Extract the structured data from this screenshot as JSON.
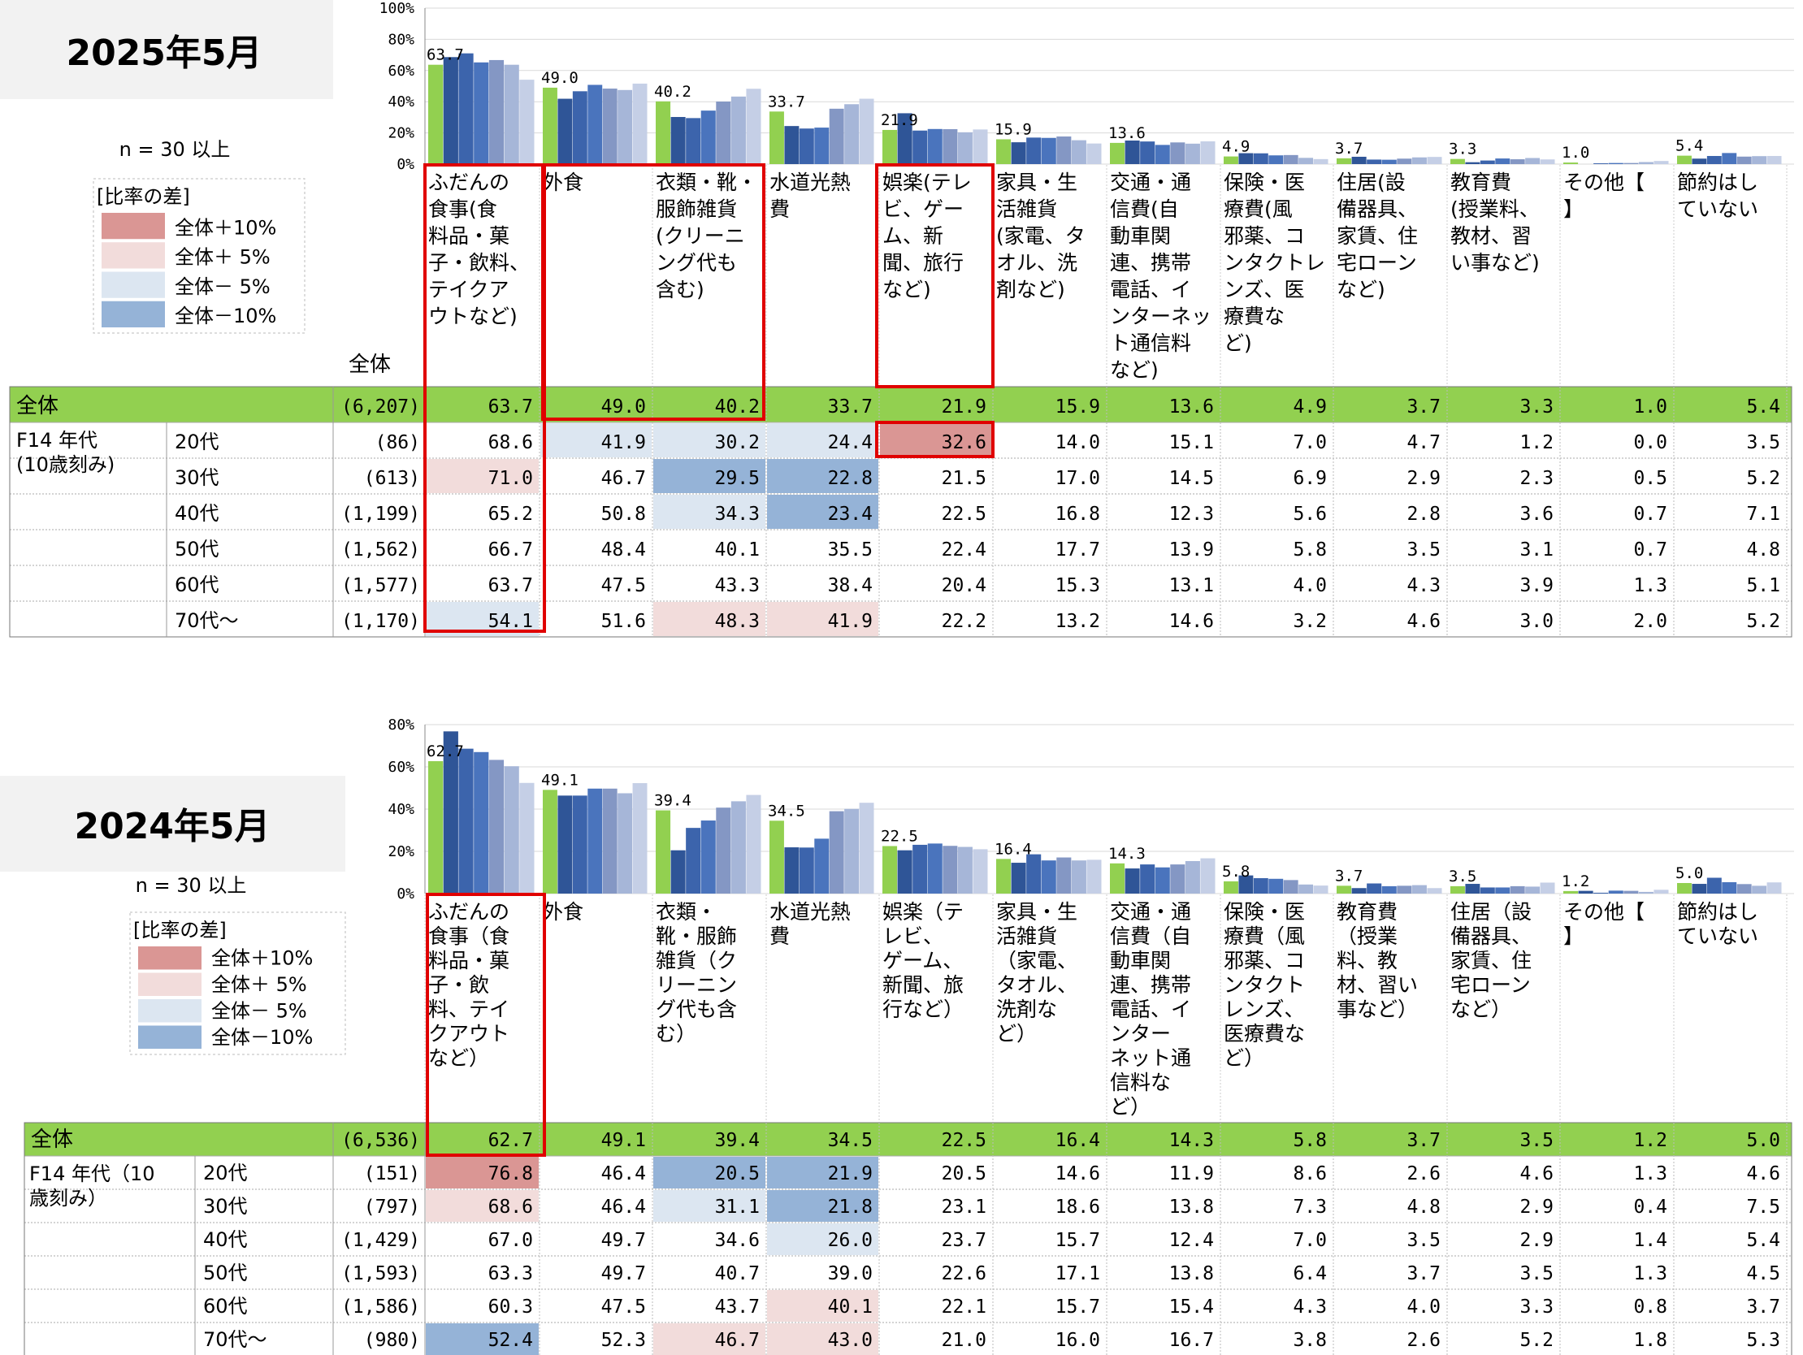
{
  "colors": {
    "header_green": "#92d050",
    "bar_total": "#92d050",
    "bar_ages": [
      "#2f5597",
      "#3c64ac",
      "#4a74bd",
      "#8497c4",
      "#a6b6d8",
      "#c5cfe6"
    ],
    "diff_plus10": "#da9694",
    "diff_plus5": "#f2dcdb",
    "diff_minus5": "#dce6f1",
    "diff_minus10": "#95b3d7",
    "highlight_box": "#e00000"
  },
  "legend": {
    "n_label": "n = 30 以上",
    "title": "[比率の差]",
    "items": [
      "全体＋10%",
      "全体＋ 5%",
      "全体－ 5%",
      "全体－10%"
    ]
  },
  "chart_data": [
    {
      "type": "bar",
      "period_label": "2025年5月",
      "total_col_header": "全体",
      "y_ticks": [
        "100%",
        "80%",
        "60%",
        "40%",
        "20%",
        "0%"
      ],
      "ylim": [
        0,
        100
      ],
      "categories": [
        "ふだんの食事(食料品・菓子・飲料、テイクアウトなど)",
        "外食",
        "衣類・靴・服飾雑貨(クリーニング代も含む)",
        "水道光熱費",
        "娯楽(テレビ、ゲーム、新聞、旅行など)",
        "家具・生活雑貨(家電、タオル、洗剤など)",
        "交通・通信費(自動車関連、携帯電話、インターネット通信料など)",
        "保険・医療費(風邪薬、コンタクトレンズ、医療費など)",
        "住居(設備器具、家賃、住宅ローンなど)",
        "教育費(授業料、教材、習い事など)",
        "その他【】",
        "節約はしていない"
      ],
      "header_labels": [
        "ふだんの\n食事(食\n料品・菓\n子・飲料、\nテイクア\nウトなど)",
        "外食",
        "衣類・靴・\n服飾雑貨\n(クリーニ\nング代も\n含む)",
        "水道光熱\n費",
        "娯楽(テレ\nビ、ゲー\nム、新\n聞、旅行\nなど)",
        "家具・生\n活雑貨\n(家電、タ\nオル、洗\n剤など)",
        "交通・通\n信費(自\n動車関\n連、携帯\n電話、イ\nンターネッ\nト通信料\nなど)",
        "保険・医\n療費(風\n邪薬、コ\nンタクトレ\nンズ、医\n療費な\nど)",
        "住居(設\n備器具、\n家賃、住\n宅ローン\nなど)",
        "教育費\n(授業料、\n教材、習\nい事など)",
        "その他【\n】",
        "節約はし\nていない"
      ],
      "bar_labels": [
        "63.7",
        "49.0",
        "40.2",
        "33.7",
        "21.9",
        "15.9",
        "13.6",
        "4.9",
        "3.7",
        "3.3",
        "1.0",
        "5.4"
      ],
      "row_group_label": "F14 年代\n(10歳刻み)",
      "rows": [
        {
          "label": "全体",
          "n": "(6,207)",
          "values": [
            "63.7",
            "49.0",
            "40.2",
            "33.7",
            "21.9",
            "15.9",
            "13.6",
            "4.9",
            "3.7",
            "3.3",
            "1.0",
            "5.4"
          ],
          "diff": []
        },
        {
          "label": "20代",
          "n": "(86)",
          "values": [
            "68.6",
            "41.9",
            "30.2",
            "24.4",
            "32.6",
            "14.0",
            "15.1",
            "7.0",
            "4.7",
            "1.2",
            "0.0",
            "3.5"
          ],
          "diff": [
            "",
            "m5",
            "m5",
            "m5",
            "p10",
            "",
            "",
            "",
            "",
            "",
            "",
            ""
          ]
        },
        {
          "label": "30代",
          "n": "(613)",
          "values": [
            "71.0",
            "46.7",
            "29.5",
            "22.8",
            "21.5",
            "17.0",
            "14.5",
            "6.9",
            "2.9",
            "2.3",
            "0.5",
            "5.2"
          ],
          "diff": [
            "p5",
            "",
            "m10",
            "m10",
            "",
            "",
            "",
            "",
            "",
            "",
            "",
            ""
          ]
        },
        {
          "label": "40代",
          "n": "(1,199)",
          "values": [
            "65.2",
            "50.8",
            "34.3",
            "23.4",
            "22.5",
            "16.8",
            "12.3",
            "5.6",
            "2.8",
            "3.6",
            "0.7",
            "7.1"
          ],
          "diff": [
            "",
            "",
            "m5",
            "m10",
            "",
            "",
            "",
            "",
            "",
            "",
            "",
            ""
          ]
        },
        {
          "label": "50代",
          "n": "(1,562)",
          "values": [
            "66.7",
            "48.4",
            "40.1",
            "35.5",
            "22.4",
            "17.7",
            "13.9",
            "5.8",
            "3.5",
            "3.1",
            "0.7",
            "4.8"
          ],
          "diff": []
        },
        {
          "label": "60代",
          "n": "(1,577)",
          "values": [
            "63.7",
            "47.5",
            "43.3",
            "38.4",
            "20.4",
            "15.3",
            "13.1",
            "4.0",
            "4.3",
            "3.9",
            "1.3",
            "5.1"
          ],
          "diff": []
        },
        {
          "label": "70代～",
          "n": "(1,170)",
          "values": [
            "54.1",
            "51.6",
            "48.3",
            "41.9",
            "22.2",
            "13.2",
            "14.6",
            "3.2",
            "4.6",
            "3.0",
            "2.0",
            "5.2"
          ],
          "diff": [
            "m5",
            "",
            "p5",
            "p5",
            "",
            "",
            "",
            "",
            "",
            "",
            "",
            ""
          ]
        }
      ]
    },
    {
      "type": "bar",
      "period_label": "2024年5月",
      "total_col_header": "",
      "y_ticks": [
        "80%",
        "60%",
        "40%",
        "20%",
        "0%"
      ],
      "ylim": [
        0,
        80
      ],
      "categories": [
        "ふだんの食事(食料品・菓子・飲料、テイクアウトなど)",
        "外食",
        "衣類・靴・服飾雑貨(クリーニング代も含む)",
        "水道光熱費",
        "娯楽(テレビ、ゲーム、新聞、旅行など)",
        "家具・生活雑貨(家電、タオル、洗剤など)",
        "交通・通信費(自動車関連、携帯電話、インターネット通信料など)",
        "保険・医療費(風邪薬、コンタクトレンズ、医療費など)",
        "教育費(授業料、教材、習い事など)",
        "住居(設備器具、家賃、住宅ローンなど)",
        "その他【】",
        "節約はしていない"
      ],
      "header_labels": [
        "ふだんの\n食事（食\n料品・菓\n子・飲\n料、テイ\nクアウト\nなど）",
        "外食",
        "衣類・\n靴・服飾\n雑貨（ク\nリーニン\nグ代も含\nむ）",
        "水道光熱\n費",
        "娯楽（テ\nレビ、\nゲーム、\n新聞、旅\n行など）",
        "家具・生\n活雑貨\n（家電、\nタオル、\n洗剤な\nど）",
        "交通・通\n信費（自\n動車関\n連、携帯\n電話、イ\nンター\nネット通\n信料な\nど）",
        "保険・医\n療費（風\n邪薬、コ\nンタクト\nレンズ、\n医療費な\nど）",
        "教育費\n（授業\n料、教\n材、習い\n事など）",
        "住居（設\n備器具、\n家賃、住\n宅ローン\nなど）",
        "その他【\n】",
        "節約はし\nていない"
      ],
      "bar_labels": [
        "62.7",
        "49.1",
        "39.4",
        "34.5",
        "22.5",
        "16.4",
        "14.3",
        "5.8",
        "3.7",
        "3.5",
        "1.2",
        "5.0"
      ],
      "row_group_label": "F14 年代（10\n歳刻み）",
      "rows": [
        {
          "label": "全体",
          "n": "(6,536)",
          "values": [
            "62.7",
            "49.1",
            "39.4",
            "34.5",
            "22.5",
            "16.4",
            "14.3",
            "5.8",
            "3.7",
            "3.5",
            "1.2",
            "5.0"
          ],
          "diff": []
        },
        {
          "label": "20代",
          "n": "(151)",
          "values": [
            "76.8",
            "46.4",
            "20.5",
            "21.9",
            "20.5",
            "14.6",
            "11.9",
            "8.6",
            "2.6",
            "4.6",
            "1.3",
            "4.6"
          ],
          "diff": [
            "p10",
            "",
            "m10",
            "m10",
            "",
            "",
            "",
            "",
            "",
            "",
            "",
            ""
          ]
        },
        {
          "label": "30代",
          "n": "(797)",
          "values": [
            "68.6",
            "46.4",
            "31.1",
            "21.8",
            "23.1",
            "18.6",
            "13.8",
            "7.3",
            "4.8",
            "2.9",
            "0.4",
            "7.5"
          ],
          "diff": [
            "p5",
            "",
            "m5",
            "m10",
            "",
            "",
            "",
            "",
            "",
            "",
            "",
            ""
          ]
        },
        {
          "label": "40代",
          "n": "(1,429)",
          "values": [
            "67.0",
            "49.7",
            "34.6",
            "26.0",
            "23.7",
            "15.7",
            "12.4",
            "7.0",
            "3.5",
            "2.9",
            "1.4",
            "5.4"
          ],
          "diff": [
            "",
            "",
            "",
            "m5",
            "",
            "",
            "",
            "",
            "",
            "",
            "",
            ""
          ]
        },
        {
          "label": "50代",
          "n": "(1,593)",
          "values": [
            "63.3",
            "49.7",
            "40.7",
            "39.0",
            "22.6",
            "17.1",
            "13.8",
            "6.4",
            "3.7",
            "3.5",
            "1.3",
            "4.5"
          ],
          "diff": []
        },
        {
          "label": "60代",
          "n": "(1,586)",
          "values": [
            "60.3",
            "47.5",
            "43.7",
            "40.1",
            "22.1",
            "15.7",
            "15.4",
            "4.3",
            "4.0",
            "3.3",
            "0.8",
            "3.7"
          ],
          "diff": [
            "",
            "",
            "",
            "p5",
            "",
            "",
            "",
            "",
            "",
            "",
            "",
            ""
          ]
        },
        {
          "label": "70代～",
          "n": "(980)",
          "values": [
            "52.4",
            "52.3",
            "46.7",
            "43.0",
            "21.0",
            "16.0",
            "16.7",
            "3.8",
            "2.6",
            "5.2",
            "1.8",
            "5.3"
          ],
          "diff": [
            "m10",
            "",
            "p5",
            "p5",
            "",
            "",
            "",
            "",
            "",
            "",
            "",
            ""
          ]
        }
      ]
    }
  ]
}
